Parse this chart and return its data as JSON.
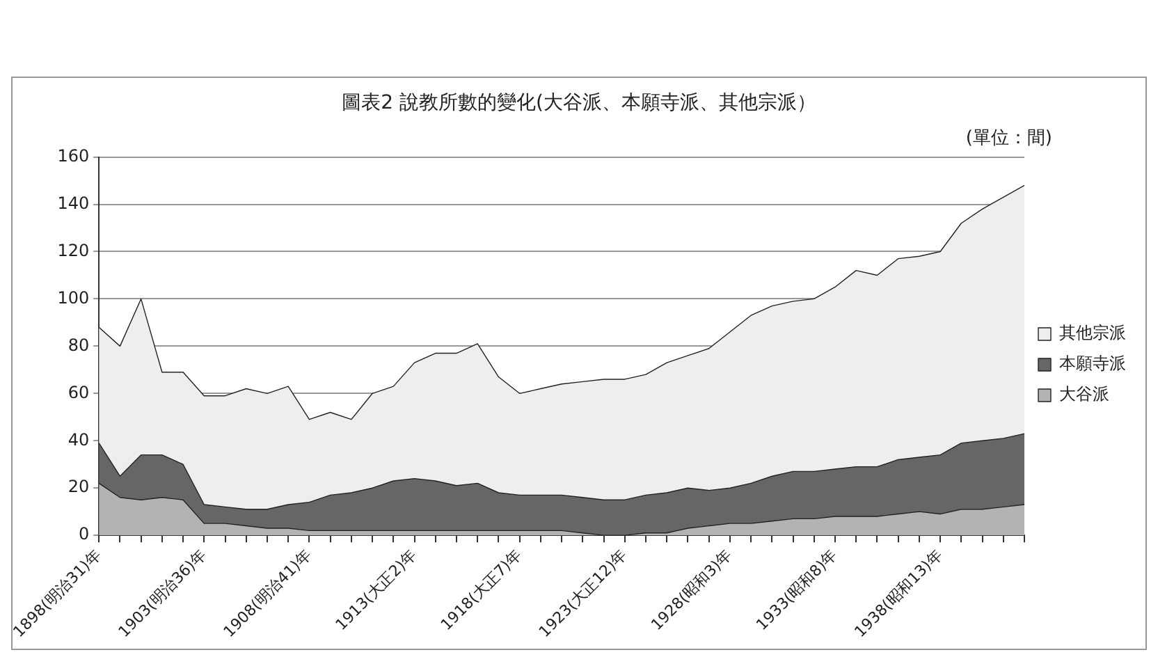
{
  "chart_data": {
    "type": "area",
    "title": "圖表2 說教所數的變化(大谷派、本願寺派、其他宗派）",
    "annotations": [
      "(單位：間)"
    ],
    "categories": [
      "1898(明治31)年",
      null,
      null,
      null,
      null,
      "1903(明治36)年",
      null,
      null,
      null,
      null,
      "1908(明治41)年",
      null,
      null,
      null,
      null,
      "1913(大正2)年",
      null,
      null,
      null,
      null,
      "1918(大正7)年",
      null,
      null,
      null,
      null,
      "1923(大正12)年",
      null,
      null,
      null,
      null,
      "1928(昭和3)年",
      null,
      null,
      null,
      null,
      "1933(昭和8)年",
      null,
      null,
      null,
      null,
      "1938(昭和13)年",
      null,
      null,
      null,
      null
    ],
    "stacked": true,
    "ylim": [
      0,
      160
    ],
    "yticks": [
      0,
      20,
      40,
      60,
      80,
      100,
      120,
      140,
      160
    ],
    "grid": "y",
    "legend": "right",
    "series": [
      {
        "name": "大谷派",
        "color": "#b3b3b3",
        "values": [
          22,
          16,
          15,
          16,
          15,
          5,
          5,
          4,
          3,
          3,
          2,
          2,
          2,
          2,
          2,
          2,
          2,
          2,
          2,
          2,
          2,
          2,
          2,
          1,
          0,
          0,
          1,
          1,
          3,
          4,
          5,
          5,
          6,
          7,
          7,
          8,
          8,
          8,
          9,
          10,
          9,
          11,
          11,
          12,
          13
        ]
      },
      {
        "name": "本願寺派",
        "color": "#666666",
        "values": [
          17,
          9,
          19,
          18,
          15,
          8,
          7,
          7,
          8,
          10,
          12,
          15,
          16,
          18,
          21,
          22,
          21,
          19,
          20,
          16,
          15,
          15,
          15,
          15,
          15,
          15,
          16,
          17,
          17,
          15,
          15,
          17,
          19,
          20,
          20,
          20,
          21,
          21,
          23,
          23,
          25,
          28,
          29,
          29,
          30
        ]
      },
      {
        "name": "其他宗派",
        "color": "#eeeeee",
        "values": [
          49,
          55,
          66,
          35,
          39,
          46,
          47,
          51,
          49,
          50,
          35,
          35,
          31,
          40,
          40,
          49,
          54,
          56,
          59,
          49,
          43,
          45,
          47,
          49,
          51,
          51,
          51,
          55,
          56,
          60,
          66,
          71,
          72,
          72,
          73,
          77,
          83,
          81,
          85,
          85,
          86,
          93,
          98,
          102,
          105
        ]
      }
    ]
  }
}
